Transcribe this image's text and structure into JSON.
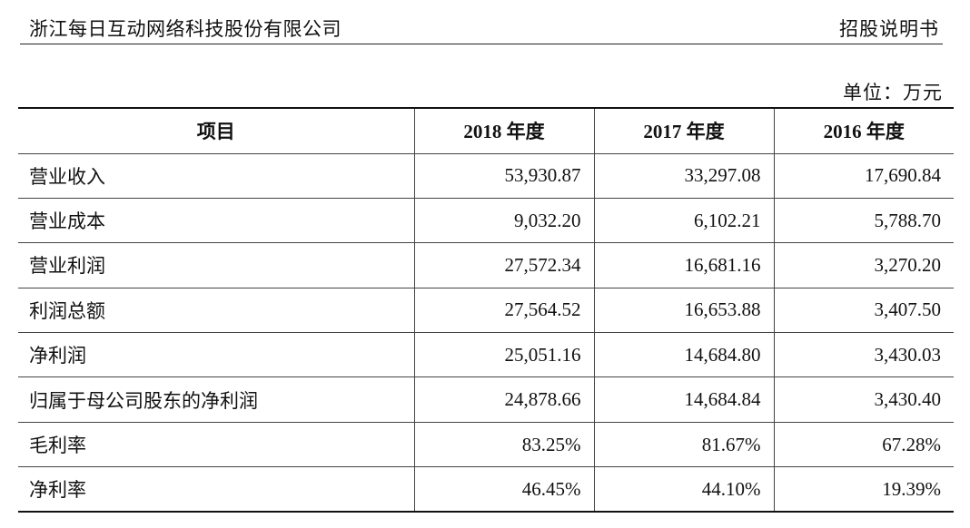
{
  "header": {
    "company": "浙江每日互动网络科技股份有限公司",
    "doc_type": "招股说明书"
  },
  "unit_label": "单位：万元",
  "table": {
    "columns": [
      "项目",
      "2018 年度",
      "2017 年度",
      "2016 年度"
    ],
    "rows": [
      {
        "label": "营业收入",
        "values": [
          "53,930.87",
          "33,297.08",
          "17,690.84"
        ]
      },
      {
        "label": "营业成本",
        "values": [
          "9,032.20",
          "6,102.21",
          "5,788.70"
        ]
      },
      {
        "label": "营业利润",
        "values": [
          "27,572.34",
          "16,681.16",
          "3,270.20"
        ]
      },
      {
        "label": "利润总额",
        "values": [
          "27,564.52",
          "16,653.88",
          "3,407.50"
        ]
      },
      {
        "label": "净利润",
        "values": [
          "25,051.16",
          "14,684.80",
          "3,430.03"
        ]
      },
      {
        "label": "归属于母公司股东的净利润",
        "values": [
          "24,878.66",
          "14,684.84",
          "3,430.40"
        ]
      },
      {
        "label": "毛利率",
        "values": [
          "83.25%",
          "81.67%",
          "67.28%"
        ]
      },
      {
        "label": "净利率",
        "values": [
          "46.45%",
          "44.10%",
          "19.39%"
        ]
      }
    ]
  }
}
